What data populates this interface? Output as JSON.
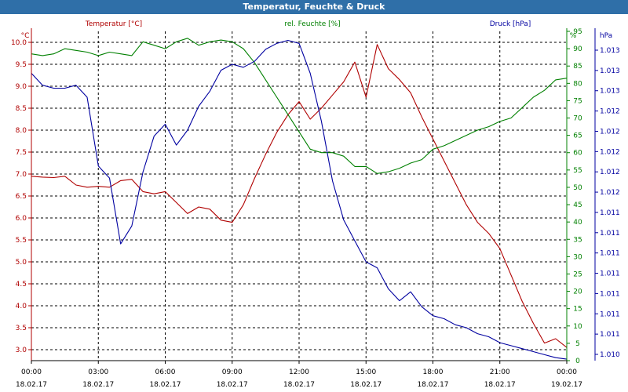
{
  "window": {
    "title": "Temperatur, Feuchte & Druck"
  },
  "chart_data": {
    "type": "line",
    "title": "Temperatur, Feuchte & Druck",
    "colors": {
      "temperature": "#b00000",
      "humidity": "#008000",
      "pressure": "#0000a0",
      "grid": "#000000",
      "titlebar": "#2f6fa8"
    },
    "grid": true,
    "x_hours": [
      0,
      0.5,
      1,
      1.5,
      2,
      2.5,
      3,
      3.5,
      4,
      4.5,
      5,
      5.5,
      6,
      6.5,
      7,
      7.5,
      8,
      8.5,
      9,
      9.5,
      10,
      10.5,
      11,
      11.5,
      12,
      12.5,
      13,
      13.5,
      14,
      14.5,
      15,
      15.5,
      16,
      16.5,
      17,
      17.5,
      18,
      18.5,
      19,
      19.5,
      20,
      20.5,
      21,
      21.5,
      22,
      22.5,
      23,
      23.5,
      24
    ],
    "x_ticks": [
      {
        "time": "00:00",
        "date": "18.02.17"
      },
      {
        "time": "03:00",
        "date": "18.02.17"
      },
      {
        "time": "06:00",
        "date": "18.02.17"
      },
      {
        "time": "09:00",
        "date": "18.02.17"
      },
      {
        "time": "12:00",
        "date": "18.02.17"
      },
      {
        "time": "15:00",
        "date": "18.02.17"
      },
      {
        "time": "18:00",
        "date": "18.02.17"
      },
      {
        "time": "21:00",
        "date": "18.02.17"
      },
      {
        "time": "00:00",
        "date": "19.02.17"
      }
    ],
    "axes": {
      "temperature": {
        "unit_label": "°C",
        "ylim": [
          2.75,
          10.25
        ],
        "ticks": [
          "3.0",
          "3.5",
          "4.0",
          "4.5",
          "5.0",
          "5.5",
          "6.0",
          "6.5",
          "7.0",
          "7.5",
          "8.0",
          "8.5",
          "9.0",
          "9.5",
          "10.0"
        ]
      },
      "humidity": {
        "unit_label": "%",
        "ylim": [
          0,
          95
        ],
        "ticks": [
          "0",
          "5",
          "10",
          "15",
          "20",
          "25",
          "30",
          "35",
          "40",
          "45",
          "50",
          "55",
          "60",
          "65",
          "70",
          "75",
          "80",
          "85",
          "90",
          "95"
        ]
      },
      "pressure": {
        "unit_label": "hPa",
        "ylim": [
          1010.9,
          1013.1
        ],
        "ticks": [
          "1.010",
          "1.011",
          "1.011",
          "1.011",
          "1.011",
          "1.011",
          "1.011",
          "1.011",
          "1.012",
          "1.012",
          "1.012",
          "1.012",
          "1.012",
          "1.013",
          "1.013",
          "1.013"
        ]
      }
    },
    "series": [
      {
        "name": "Temperatur [°C]",
        "key": "temperature",
        "values": [
          6.95,
          6.93,
          6.92,
          6.95,
          6.75,
          6.7,
          6.72,
          6.7,
          6.85,
          6.88,
          6.6,
          6.55,
          6.6,
          6.35,
          6.1,
          6.25,
          6.2,
          5.95,
          5.9,
          6.3,
          6.9,
          7.45,
          7.95,
          8.35,
          8.65,
          8.25,
          8.5,
          8.8,
          9.1,
          9.55,
          8.75,
          9.95,
          9.4,
          9.15,
          8.85,
          8.3,
          7.8,
          7.3,
          6.8,
          6.3,
          5.9,
          5.65,
          5.3,
          4.7,
          4.1,
          3.6,
          3.15,
          3.25,
          3.05
        ]
      },
      {
        "name": "rel. Feuchte [%]",
        "key": "humidity",
        "values": [
          88.5,
          88,
          88.5,
          90,
          89.5,
          89,
          88,
          89,
          88.5,
          88,
          92,
          91,
          90,
          92,
          93,
          91,
          92,
          92.5,
          92,
          90,
          86,
          81,
          76,
          71,
          66,
          61,
          60,
          60,
          59,
          56,
          56,
          54,
          54.5,
          55.5,
          57,
          58,
          61,
          62,
          63.5,
          65,
          66.5,
          67.5,
          69,
          70,
          73,
          76,
          78,
          81,
          81.5
        ]
      },
      {
        "name": "Druck [hPa]",
        "key": "pressure",
        "values": [
          1012.82,
          1012.74,
          1012.72,
          1012.72,
          1012.74,
          1012.66,
          1012.2,
          1012.12,
          1011.68,
          1011.8,
          1012.16,
          1012.4,
          1012.48,
          1012.34,
          1012.44,
          1012.6,
          1012.7,
          1012.84,
          1012.88,
          1012.86,
          1012.9,
          1012.98,
          1013.02,
          1013.04,
          1013.02,
          1012.82,
          1012.5,
          1012.1,
          1011.84,
          1011.7,
          1011.56,
          1011.52,
          1011.38,
          1011.3,
          1011.36,
          1011.26,
          1011.2,
          1011.18,
          1011.14,
          1011.12,
          1011.08,
          1011.06,
          1011.02,
          1011.0,
          1010.98,
          1010.96,
          1010.94,
          1010.92,
          1010.91
        ]
      }
    ]
  }
}
